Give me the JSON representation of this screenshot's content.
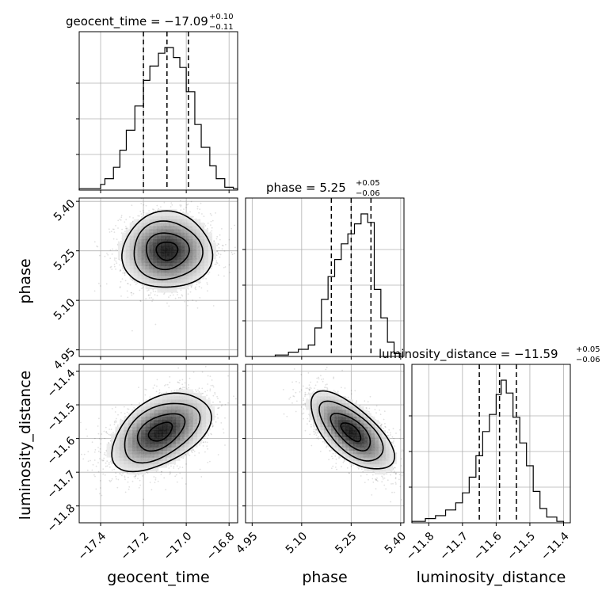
{
  "chart_data": {
    "type": "corner",
    "grid": true,
    "parameters": [
      {
        "name": "geocent_time",
        "median": -17.09,
        "plus": 0.1,
        "minus": 0.11,
        "title_main": "geocent_time = −17.09",
        "title_plus": "+0.10",
        "title_minus": "−0.11",
        "range": [
          -17.5,
          -16.76
        ],
        "ticks": [
          -17.4,
          -17.2,
          -17.0,
          -16.8
        ],
        "tick_labels": [
          "−17.4",
          "−17.2",
          "−17.0",
          "−16.8"
        ],
        "quantiles": [
          -17.2,
          -17.09,
          -16.99
        ],
        "histogram": [
          {
            "lo": -17.5,
            "hi": -17.4,
            "v": 0.01
          },
          {
            "lo": -17.4,
            "hi": -17.38,
            "v": 0.04
          },
          {
            "lo": -17.38,
            "hi": -17.34,
            "v": 0.08
          },
          {
            "lo": -17.34,
            "hi": -17.31,
            "v": 0.16
          },
          {
            "lo": -17.31,
            "hi": -17.28,
            "v": 0.28
          },
          {
            "lo": -17.28,
            "hi": -17.24,
            "v": 0.42
          },
          {
            "lo": -17.24,
            "hi": -17.2,
            "v": 0.59
          },
          {
            "lo": -17.2,
            "hi": -17.17,
            "v": 0.77
          },
          {
            "lo": -17.17,
            "hi": -17.13,
            "v": 0.87
          },
          {
            "lo": -17.13,
            "hi": -17.1,
            "v": 0.96
          },
          {
            "lo": -17.1,
            "hi": -17.06,
            "v": 1.0
          },
          {
            "lo": -17.06,
            "hi": -17.03,
            "v": 0.93
          },
          {
            "lo": -17.03,
            "hi": -17.0,
            "v": 0.86
          },
          {
            "lo": -17.0,
            "hi": -16.96,
            "v": 0.69
          },
          {
            "lo": -16.96,
            "hi": -16.93,
            "v": 0.46
          },
          {
            "lo": -16.93,
            "hi": -16.89,
            "v": 0.3
          },
          {
            "lo": -16.89,
            "hi": -16.86,
            "v": 0.17
          },
          {
            "lo": -16.86,
            "hi": -16.82,
            "v": 0.08
          },
          {
            "lo": -16.82,
            "hi": -16.78,
            "v": 0.02
          },
          {
            "lo": -16.78,
            "hi": -16.76,
            "v": 0.01
          }
        ]
      },
      {
        "name": "phase",
        "median": 5.25,
        "plus": 0.05,
        "minus": 0.06,
        "title_main": "phase = 5.25",
        "title_plus": "+0.05",
        "title_minus": "−0.06",
        "range": [
          4.93,
          5.41
        ],
        "ticks": [
          4.95,
          5.1,
          5.25,
          5.4
        ],
        "tick_labels": [
          "4.95",
          "5.10",
          "5.25",
          "5.40"
        ],
        "quantiles": [
          5.19,
          5.25,
          5.31
        ],
        "histogram": [
          {
            "lo": 5.02,
            "hi": 5.06,
            "v": 0.01
          },
          {
            "lo": 5.06,
            "hi": 5.09,
            "v": 0.03
          },
          {
            "lo": 5.09,
            "hi": 5.12,
            "v": 0.05
          },
          {
            "lo": 5.12,
            "hi": 5.14,
            "v": 0.08
          },
          {
            "lo": 5.14,
            "hi": 5.16,
            "v": 0.2
          },
          {
            "lo": 5.16,
            "hi": 5.18,
            "v": 0.4
          },
          {
            "lo": 5.18,
            "hi": 5.2,
            "v": 0.56
          },
          {
            "lo": 5.2,
            "hi": 5.22,
            "v": 0.68
          },
          {
            "lo": 5.22,
            "hi": 5.24,
            "v": 0.79
          },
          {
            "lo": 5.24,
            "hi": 5.26,
            "v": 0.86
          },
          {
            "lo": 5.26,
            "hi": 5.28,
            "v": 0.93
          },
          {
            "lo": 5.28,
            "hi": 5.3,
            "v": 1.0
          },
          {
            "lo": 5.3,
            "hi": 5.32,
            "v": 0.94
          },
          {
            "lo": 5.32,
            "hi": 5.34,
            "v": 0.47
          },
          {
            "lo": 5.34,
            "hi": 5.36,
            "v": 0.27
          },
          {
            "lo": 5.36,
            "hi": 5.38,
            "v": 0.1
          },
          {
            "lo": 5.38,
            "hi": 5.4,
            "v": 0.02
          }
        ]
      },
      {
        "name": "luminosity_distance",
        "median": -11.59,
        "plus": 0.05,
        "minus": 0.06,
        "title_main": "luminosity_distance = −11.59",
        "title_plus": "+0.05",
        "title_minus": "−0.06",
        "range": [
          -11.85,
          -11.38
        ],
        "ticks": [
          -11.8,
          -11.7,
          -11.6,
          -11.5,
          -11.4
        ],
        "tick_labels": [
          "−11.8",
          "−11.7",
          "−11.6",
          "−11.5",
          "−11.4"
        ],
        "quantiles": [
          -11.65,
          -11.59,
          -11.54
        ],
        "histogram": [
          {
            "lo": -11.85,
            "hi": -11.81,
            "v": 0.01
          },
          {
            "lo": -11.81,
            "hi": -11.78,
            "v": 0.03
          },
          {
            "lo": -11.78,
            "hi": -11.75,
            "v": 0.05
          },
          {
            "lo": -11.75,
            "hi": -11.72,
            "v": 0.09
          },
          {
            "lo": -11.72,
            "hi": -11.7,
            "v": 0.14
          },
          {
            "lo": -11.7,
            "hi": -11.68,
            "v": 0.21
          },
          {
            "lo": -11.68,
            "hi": -11.66,
            "v": 0.32
          },
          {
            "lo": -11.66,
            "hi": -11.64,
            "v": 0.47
          },
          {
            "lo": -11.64,
            "hi": -11.62,
            "v": 0.64
          },
          {
            "lo": -11.62,
            "hi": -11.6,
            "v": 0.76
          },
          {
            "lo": -11.6,
            "hi": -11.585,
            "v": 0.9
          },
          {
            "lo": -11.585,
            "hi": -11.57,
            "v": 1.0
          },
          {
            "lo": -11.57,
            "hi": -11.55,
            "v": 0.91
          },
          {
            "lo": -11.55,
            "hi": -11.53,
            "v": 0.74
          },
          {
            "lo": -11.53,
            "hi": -11.51,
            "v": 0.56
          },
          {
            "lo": -11.51,
            "hi": -11.49,
            "v": 0.4
          },
          {
            "lo": -11.49,
            "hi": -11.47,
            "v": 0.22
          },
          {
            "lo": -11.47,
            "hi": -11.45,
            "v": 0.1
          },
          {
            "lo": -11.45,
            "hi": -11.42,
            "v": 0.04
          },
          {
            "lo": -11.42,
            "hi": -11.4,
            "v": 0.01
          }
        ]
      }
    ],
    "pairs": [
      {
        "x_param": "geocent_time",
        "y_param": "phase",
        "center": [
          -17.09,
          5.25
        ],
        "sigma": [
          0.1,
          0.055
        ],
        "correlation": 0.0,
        "contour_levels_sigma": [
          0.5,
          1.0,
          1.6,
          2.1
        ]
      },
      {
        "x_param": "geocent_time",
        "y_param": "luminosity_distance",
        "center": [
          -17.12,
          -11.58
        ],
        "sigma": [
          0.11,
          0.055
        ],
        "correlation": 0.45,
        "contour_levels_sigma": [
          0.5,
          1.0,
          1.6,
          2.1
        ]
      },
      {
        "x_param": "phase",
        "y_param": "luminosity_distance",
        "center": [
          5.25,
          -11.58
        ],
        "sigma": [
          0.06,
          0.055
        ],
        "correlation": -0.65,
        "contour_levels_sigma": [
          0.5,
          1.0,
          1.6,
          2.1
        ]
      }
    ]
  }
}
